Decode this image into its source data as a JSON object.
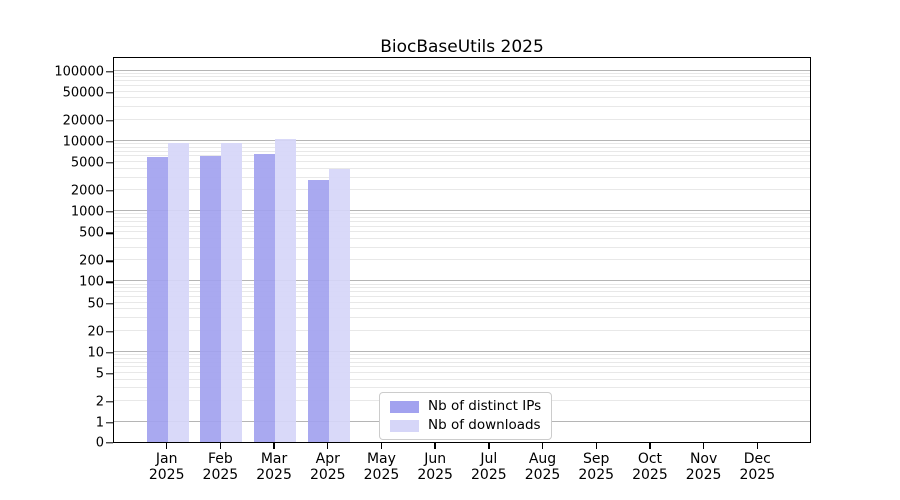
{
  "chart_data": {
    "type": "bar",
    "title": "BiocBaseUtils 2025",
    "year_label": "2025",
    "categories": [
      "Jan",
      "Feb",
      "Mar",
      "Apr",
      "May",
      "Jun",
      "Jul",
      "Aug",
      "Sep",
      "Oct",
      "Nov",
      "Dec"
    ],
    "series": [
      {
        "name": "Nb of distinct IPs",
        "color": "#a2a2ef",
        "values": [
          5800,
          6000,
          6600,
          2800,
          null,
          null,
          null,
          null,
          null,
          null,
          null,
          null
        ]
      },
      {
        "name": "Nb of downloads",
        "color": "#d6d6f8",
        "values": [
          9400,
          9300,
          10500,
          4000,
          null,
          null,
          null,
          null,
          null,
          null,
          null,
          null
        ]
      }
    ],
    "yticks": [
      0,
      1,
      2,
      5,
      10,
      20,
      50,
      100,
      200,
      500,
      1000,
      2000,
      5000,
      10000,
      20000,
      50000,
      100000
    ],
    "ylabel": "",
    "xlabel": "",
    "yscale": "log (with 0 at baseline)",
    "ylim": [
      0,
      150000
    ],
    "grid": "horizontal only; darker lines at powers of 10, faint minor lines at 2-9 multiples",
    "legend_position": "inside plot, lower center"
  },
  "colors": {
    "bar_distinct_ips": "#a2a2ef",
    "bar_downloads": "#d6d6f8",
    "grid_major": "#b5b5b5",
    "grid_minor": "#e8e8e8",
    "spine": "#000000",
    "background": "#ffffff"
  }
}
